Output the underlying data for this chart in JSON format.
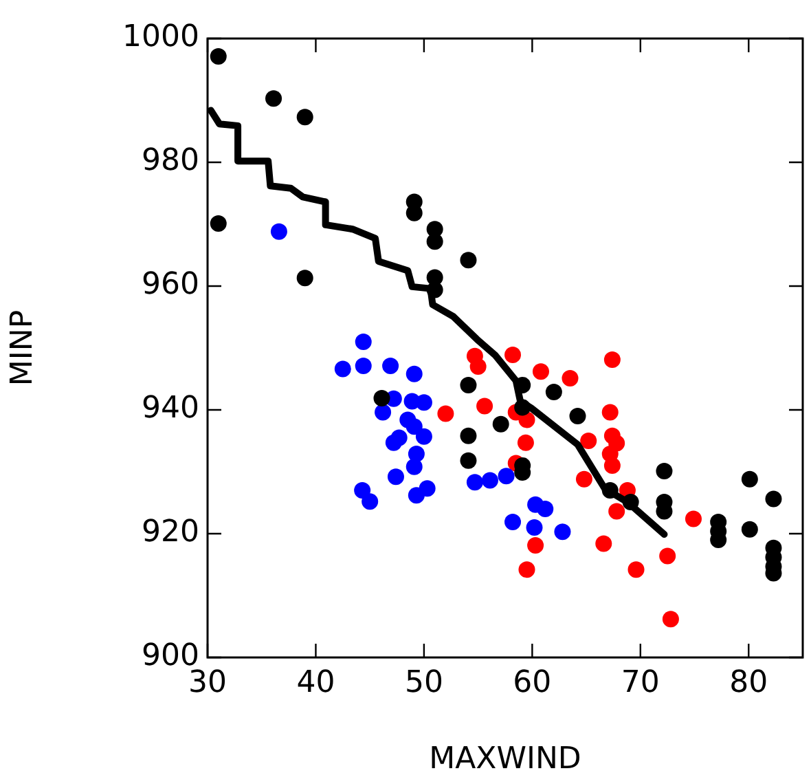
{
  "chart_data": {
    "type": "scatter",
    "xlabel": "MAXWIND",
    "ylabel": "MINP",
    "xlim": [
      30,
      85
    ],
    "xticks": [
      30,
      40,
      50,
      60,
      70,
      80
    ],
    "ylim": [
      900,
      1000
    ],
    "yticks": [
      900,
      920,
      940,
      960,
      980,
      1000
    ],
    "grid": false,
    "legend": false,
    "marker": "circle",
    "series": [
      {
        "color": "#000000",
        "x": [
          31,
          36.1,
          39,
          31,
          39,
          49.1,
          49.1,
          51,
          51,
          54.1,
          51,
          51,
          46.1,
          54.1,
          54.1,
          54.1,
          57.1,
          59.1,
          62,
          64.2,
          59.1,
          59.1,
          59.1,
          67.2,
          69.1,
          72.2,
          72.2,
          72.2,
          77.2,
          77.2,
          77.2,
          80.1,
          80.1,
          82.3,
          82.3,
          82.3,
          82.3,
          82.3
        ],
        "values": [
          997.1,
          990.3,
          987.3,
          970.1,
          961.3,
          973.6,
          971.8,
          969.2,
          967.2,
          964.2,
          961.4,
          959.4,
          941.9,
          944,
          935.8,
          931.8,
          937.7,
          944,
          942.9,
          939,
          940.4,
          931,
          929.9,
          927,
          925.1,
          930.1,
          925.1,
          923.6,
          921.9,
          920.4,
          919,
          928.8,
          920.7,
          925.6,
          917.7,
          916.2,
          914.7,
          913.6
        ]
      },
      {
        "color": "#0000ff",
        "x": [
          36.6,
          44.4,
          42.5,
          44.4,
          46.9,
          49.1,
          47.2,
          46.2,
          48.9,
          50,
          48.5,
          49.1,
          50,
          47.2,
          47.7,
          49.3,
          49.1,
          47.4,
          44.3,
          45,
          49.3,
          50.3,
          54.7,
          56.1,
          57.6,
          60.3,
          61.2,
          58.2,
          60.2,
          62.8
        ],
        "values": [
          968.8,
          951,
          946.6,
          947.1,
          947.1,
          945.8,
          941.8,
          939.6,
          941.4,
          941.2,
          938.4,
          937.3,
          935.7,
          934.7,
          935.5,
          932.9,
          930.8,
          929.2,
          927,
          925.2,
          926.2,
          927.3,
          928.3,
          928.6,
          929.3,
          924.7,
          924,
          921.9,
          921,
          920.3
        ]
      },
      {
        "color": "#ff0000",
        "x": [
          52,
          54.7,
          55,
          55.6,
          58.2,
          60.8,
          63.5,
          67.4,
          58.5,
          59.5,
          59.4,
          58.5,
          67.2,
          67.4,
          67.8,
          65.2,
          67.2,
          67.4,
          64.8,
          68.8,
          67.8,
          74.9,
          60.3,
          66.6,
          59.5,
          69.6,
          72.5,
          72.8
        ],
        "values": [
          939.4,
          948.7,
          947,
          940.6,
          948.9,
          946.2,
          945.1,
          948.1,
          939.6,
          938.4,
          934.7,
          931.4,
          939.6,
          935.8,
          934.6,
          935,
          932.9,
          931,
          928.8,
          927,
          923.6,
          922.4,
          918.1,
          918.4,
          914.2,
          914.2,
          916.4,
          906.2
        ]
      },
      {
        "type": "line",
        "color": "#000000",
        "marker": "none",
        "x": [
          30.3,
          31.1,
          32.8,
          32.8,
          35.6,
          35.8,
          37.7,
          38.8,
          40.9,
          40.9,
          43.4,
          45.5,
          45.8,
          48.5,
          48.9,
          50.6,
          50.8,
          52.7,
          54.9,
          56.6,
          58.5,
          58.9,
          59.9,
          64.2,
          66.7,
          68.8,
          72.2
        ],
        "values": [
          988.4,
          986.2,
          985.9,
          980.2,
          980.2,
          976.2,
          975.8,
          974.4,
          973.6,
          969.9,
          969.2,
          967.7,
          964,
          962.5,
          959.9,
          959.6,
          957,
          955.1,
          951.4,
          948.8,
          944.7,
          941.4,
          940.3,
          934.4,
          927.3,
          925.1,
          919.9
        ]
      }
    ]
  }
}
